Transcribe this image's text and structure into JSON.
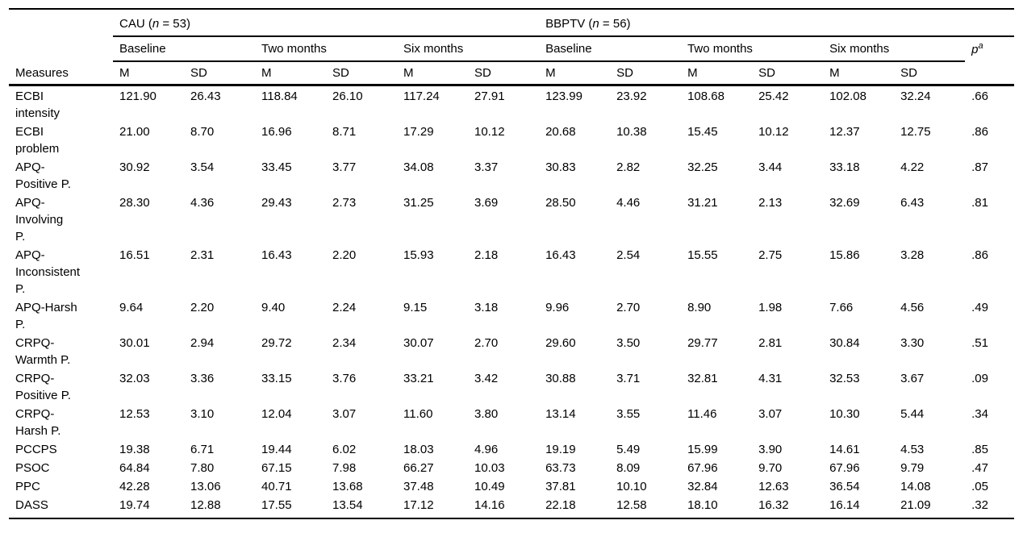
{
  "table": {
    "corner_label": "Measures",
    "groups": [
      {
        "pre": "CAU (",
        "n": "n",
        "post": " = 53)"
      },
      {
        "pre": "BBPTV (",
        "n": "n",
        "post": " = 56)"
      }
    ],
    "timepoints": [
      "Baseline",
      "Two months",
      "Six months",
      "Baseline",
      "Two months",
      "Six months"
    ],
    "stat_labels": {
      "m": "M",
      "sd": "SD"
    },
    "p_header": {
      "base": "p",
      "sup": "a"
    },
    "rows": [
      {
        "label": "ECBI\nintensity",
        "values": [
          "121.90",
          "26.43",
          "118.84",
          "26.10",
          "117.24",
          "27.91",
          "123.99",
          "23.92",
          "108.68",
          "25.42",
          "102.08",
          "32.24"
        ],
        "p": ".66"
      },
      {
        "label": "ECBI\nproblem",
        "values": [
          "21.00",
          "8.70",
          "16.96",
          "8.71",
          "17.29",
          "10.12",
          "20.68",
          "10.38",
          "15.45",
          "10.12",
          "12.37",
          "12.75"
        ],
        "p": ".86"
      },
      {
        "label": "APQ-\nPositive P.",
        "values": [
          "30.92",
          "3.54",
          "33.45",
          "3.77",
          "34.08",
          "3.37",
          "30.83",
          "2.82",
          "32.25",
          "3.44",
          "33.18",
          "4.22"
        ],
        "p": ".87"
      },
      {
        "label": "APQ-\nInvolving\nP.",
        "values": [
          "28.30",
          "4.36",
          "29.43",
          "2.73",
          "31.25",
          "3.69",
          "28.50",
          "4.46",
          "31.21",
          "2.13",
          "32.69",
          "6.43"
        ],
        "p": ".81"
      },
      {
        "label": "APQ-\nInconsistent\nP.",
        "values": [
          "16.51",
          "2.31",
          "16.43",
          "2.20",
          "15.93",
          "2.18",
          "16.43",
          "2.54",
          "15.55",
          "2.75",
          "15.86",
          "3.28"
        ],
        "p": ".86"
      },
      {
        "label": "APQ-Harsh\nP.",
        "values": [
          "9.64",
          "2.20",
          "9.40",
          "2.24",
          "9.15",
          "3.18",
          "9.96",
          "2.70",
          "8.90",
          "1.98",
          "7.66",
          "4.56"
        ],
        "p": ".49"
      },
      {
        "label": "CRPQ-\nWarmth P.",
        "values": [
          "30.01",
          "2.94",
          "29.72",
          "2.34",
          "30.07",
          "2.70",
          "29.60",
          "3.50",
          "29.77",
          "2.81",
          "30.84",
          "3.30"
        ],
        "p": ".51"
      },
      {
        "label": "CRPQ-\nPositive P.",
        "values": [
          "32.03",
          "3.36",
          "33.15",
          "3.76",
          "33.21",
          "3.42",
          "30.88",
          "3.71",
          "32.81",
          "4.31",
          "32.53",
          "3.67"
        ],
        "p": ".09"
      },
      {
        "label": "CRPQ-\nHarsh P.",
        "values": [
          "12.53",
          "3.10",
          "12.04",
          "3.07",
          "11.60",
          "3.80",
          "13.14",
          "3.55",
          "11.46",
          "3.07",
          "10.30",
          "5.44"
        ],
        "p": ".34"
      },
      {
        "label": "PCCPS",
        "values": [
          "19.38",
          "6.71",
          "19.44",
          "6.02",
          "18.03",
          "4.96",
          "19.19",
          "5.49",
          "15.99",
          "3.90",
          "14.61",
          "4.53"
        ],
        "p": ".85"
      },
      {
        "label": "PSOC",
        "values": [
          "64.84",
          "7.80",
          "67.15",
          "7.98",
          "66.27",
          "10.03",
          "63.73",
          "8.09",
          "67.96",
          "9.70",
          "67.96",
          "9.79"
        ],
        "p": ".47"
      },
      {
        "label": "PPC",
        "values": [
          "42.28",
          "13.06",
          "40.71",
          "13.68",
          "37.48",
          "10.49",
          "37.81",
          "10.10",
          "32.84",
          "12.63",
          "36.54",
          "14.08"
        ],
        "p": ".05"
      },
      {
        "label": "DASS",
        "values": [
          "19.74",
          "12.88",
          "17.55",
          "13.54",
          "17.12",
          "14.16",
          "22.18",
          "12.58",
          "18.10",
          "16.32",
          "16.14",
          "21.09"
        ],
        "p": ".32"
      }
    ]
  }
}
